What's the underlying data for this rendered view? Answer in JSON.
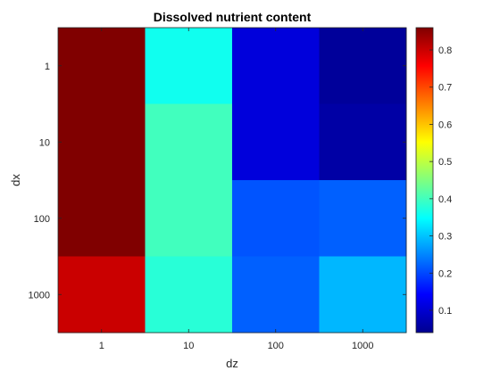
{
  "chart_data": {
    "type": "heatmap",
    "title": "Dissolved nutrient content",
    "xlabel": "dz",
    "ylabel": "dx",
    "x_categories": [
      "1",
      "10",
      "100",
      "1000"
    ],
    "y_categories": [
      "1",
      "10",
      "100",
      "1000"
    ],
    "values": [
      [
        0.86,
        0.36,
        0.11,
        0.05
      ],
      [
        0.86,
        0.4,
        0.11,
        0.06
      ],
      [
        0.86,
        0.4,
        0.21,
        0.22
      ],
      [
        0.8,
        0.38,
        0.22,
        0.29
      ]
    ],
    "colormap": "jet",
    "clim": [
      0.04,
      0.86
    ],
    "colorbar": {
      "ticks": [
        0.1,
        0.2,
        0.3,
        0.4,
        0.5,
        0.6,
        0.7,
        0.8
      ],
      "tick_labels": [
        "0.1",
        "0.2",
        "0.3",
        "0.4",
        "0.5",
        "0.6",
        "0.7",
        "0.8"
      ],
      "position": "right"
    },
    "grid": false
  }
}
